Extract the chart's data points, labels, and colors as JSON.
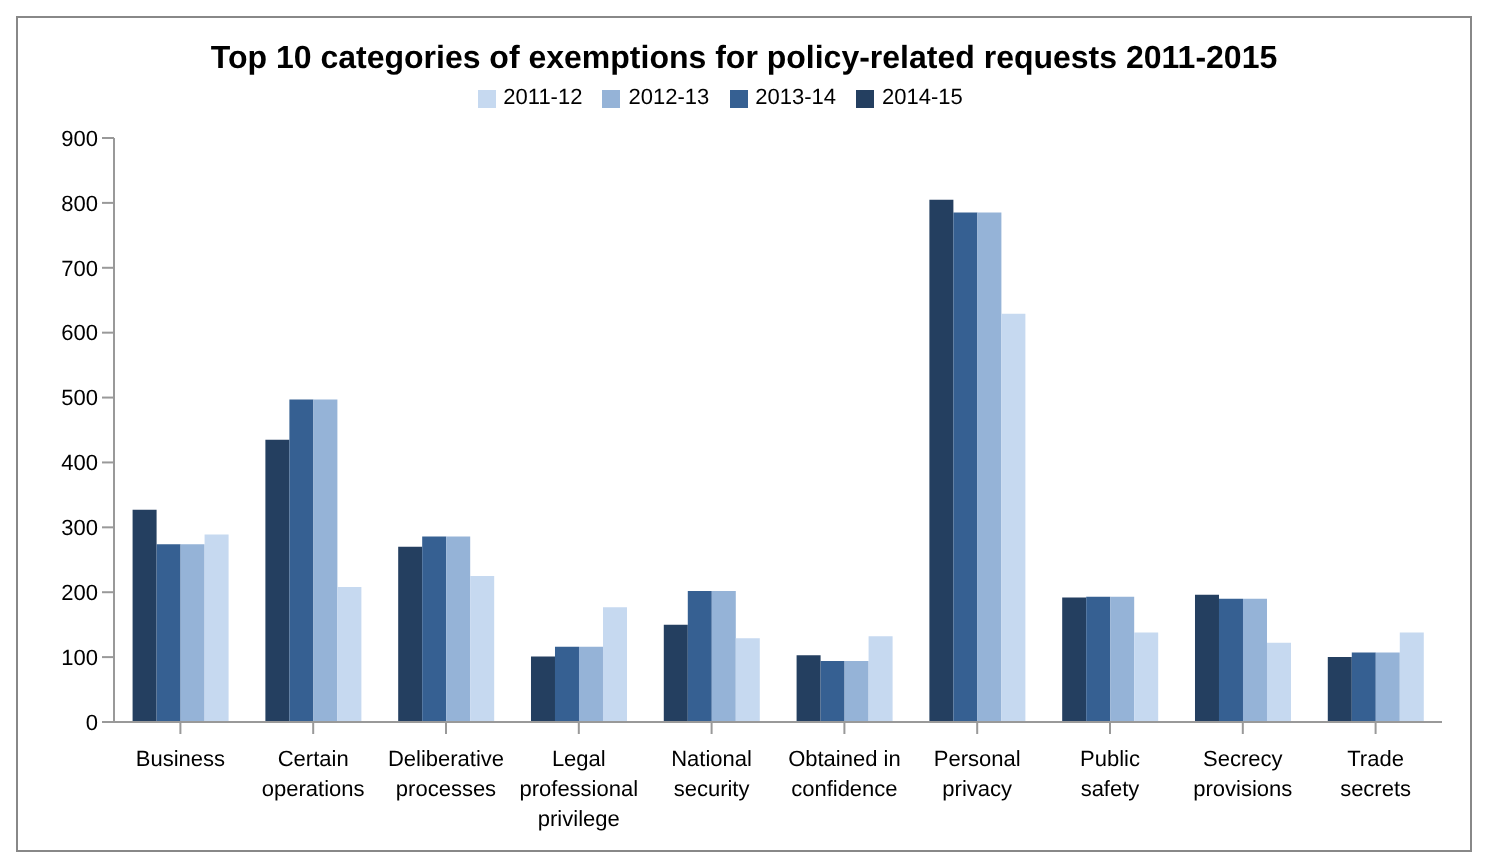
{
  "chart_data": {
    "type": "bar",
    "title": "Top 10 categories of exemptions for policy-related requests 2011-2015",
    "categories": [
      "Business",
      "Certain operations",
      "Deliberative processes",
      "Legal professional privilege",
      "National security",
      "Obtained in confidence",
      "Personal privacy",
      "Public safety",
      "Secrecy provisions",
      "Trade secrets"
    ],
    "series": [
      {
        "name": "2014-15",
        "color": "#243f60",
        "values": [
          327,
          435,
          270,
          101,
          150,
          103,
          805,
          192,
          196,
          100
        ]
      },
      {
        "name": "2013-14",
        "color": "#366092",
        "values": [
          274,
          497,
          286,
          116,
          202,
          94,
          785,
          193,
          190,
          107
        ]
      },
      {
        "name": "2012-13",
        "color": "#95b3d7",
        "values": [
          274,
          497,
          286,
          116,
          202,
          94,
          785,
          193,
          190,
          107
        ]
      },
      {
        "name": "2011-12",
        "color": "#c6d9f0",
        "values": [
          289,
          208,
          225,
          177,
          129,
          132,
          629,
          138,
          122,
          138
        ]
      }
    ],
    "ylim": [
      0,
      900
    ],
    "yticks": [
      0,
      100,
      200,
      300,
      400,
      500,
      600,
      700,
      800,
      900
    ],
    "grid": false,
    "legend": "top"
  }
}
